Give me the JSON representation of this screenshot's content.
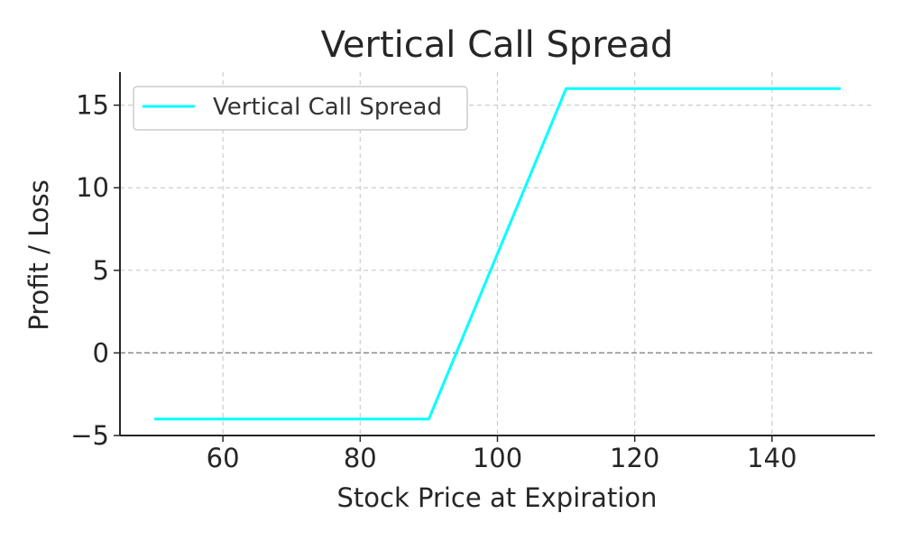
{
  "chart_data": {
    "type": "line",
    "title": "Vertical Call Spread",
    "xlabel": "Stock Price at Expiration",
    "ylabel": "Profit / Loss",
    "xlim": [
      45,
      155
    ],
    "ylim": [
      -5,
      17
    ],
    "xticks": [
      60,
      80,
      100,
      120,
      140
    ],
    "yticks": [
      -5,
      0,
      5,
      10,
      15
    ],
    "ytick_labels": [
      "−5",
      "0",
      "5",
      "10",
      "15"
    ],
    "grid": true,
    "zero_line": true,
    "legend_position": "upper-left",
    "series": [
      {
        "name": "Vertical Call Spread",
        "color": "#00FFFF",
        "x": [
          50,
          90,
          110,
          150
        ],
        "y": [
          -4,
          -4,
          16,
          16
        ]
      }
    ]
  }
}
